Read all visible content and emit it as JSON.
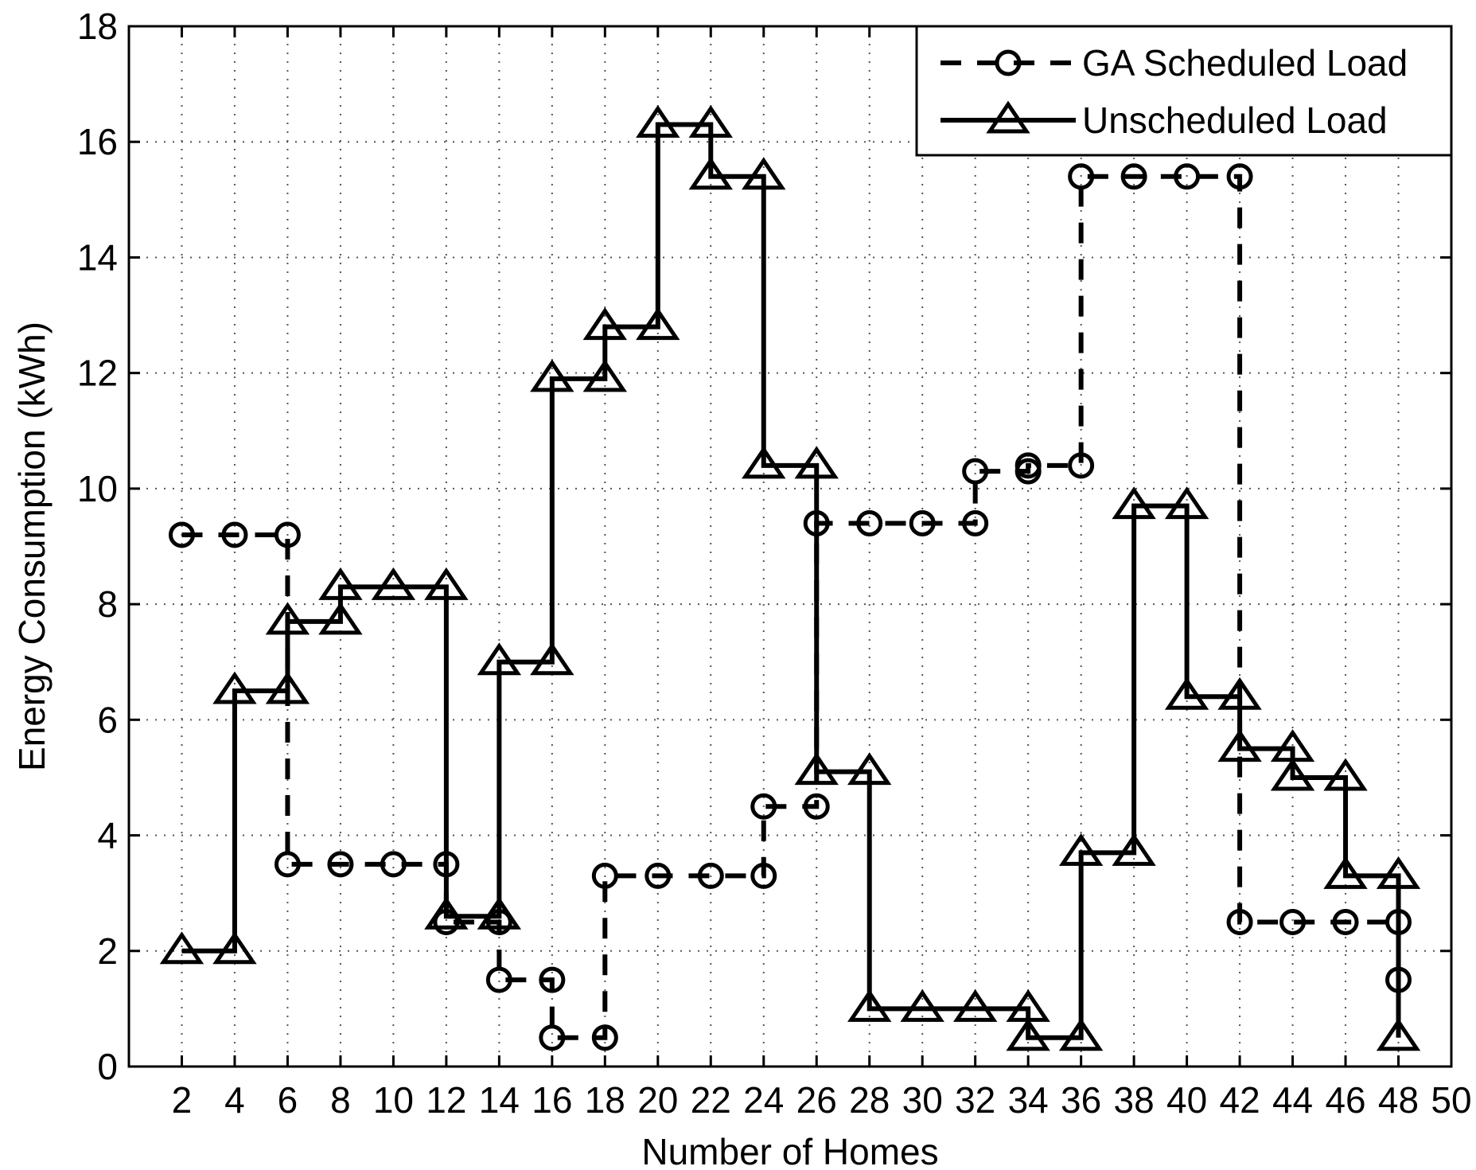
{
  "chart_data": {
    "type": "line",
    "xlabel": "Number of Homes",
    "ylabel": "Energy Consumption (kWh)",
    "xlim": [
      0,
      50
    ],
    "ylim": [
      0,
      18
    ],
    "xticks": [
      2,
      4,
      6,
      8,
      10,
      12,
      14,
      16,
      18,
      20,
      22,
      24,
      26,
      28,
      30,
      32,
      34,
      36,
      38,
      40,
      42,
      44,
      46,
      48,
      50
    ],
    "yticks": [
      0,
      2,
      4,
      6,
      8,
      10,
      12,
      14,
      16,
      18
    ],
    "grid": true,
    "legend_position": "top-right",
    "step": "post",
    "series": [
      {
        "name": "GA Scheduled Load",
        "line_style": "dashed",
        "marker": "circle",
        "color": "#000000",
        "x": [
          2,
          4,
          6,
          6,
          8,
          10,
          12,
          12,
          14,
          14,
          16,
          16,
          18,
          18,
          20,
          22,
          24,
          24,
          26,
          26,
          28,
          30,
          32,
          32,
          34,
          34,
          36,
          36,
          38,
          40,
          42,
          42,
          44,
          46,
          48,
          48
        ],
        "y": [
          9.2,
          9.2,
          9.2,
          3.5,
          3.5,
          3.5,
          3.5,
          2.5,
          2.5,
          1.5,
          1.5,
          0.5,
          0.5,
          3.3,
          3.3,
          3.3,
          3.3,
          4.5,
          4.5,
          9.4,
          9.4,
          9.4,
          9.4,
          10.3,
          10.3,
          10.4,
          10.4,
          15.4,
          15.4,
          15.4,
          15.4,
          2.5,
          2.5,
          2.5,
          2.5,
          1.5
        ]
      },
      {
        "name": "Unscheduled Load",
        "line_style": "solid",
        "marker": "triangle",
        "color": "#000000",
        "x": [
          2,
          4,
          4,
          6,
          6,
          8,
          8,
          10,
          12,
          12,
          14,
          14,
          16,
          16,
          18,
          18,
          20,
          20,
          22,
          22,
          24,
          24,
          26,
          26,
          28,
          28,
          30,
          32,
          34,
          34,
          36,
          36,
          38,
          38,
          40,
          40,
          42,
          42,
          44,
          44,
          46,
          46,
          48,
          48
        ],
        "y": [
          2.0,
          2.0,
          6.5,
          6.5,
          7.7,
          7.7,
          8.3,
          8.3,
          8.3,
          2.6,
          2.6,
          7.0,
          7.0,
          11.9,
          11.9,
          12.8,
          12.8,
          16.3,
          16.3,
          15.4,
          15.4,
          10.4,
          10.4,
          5.1,
          5.1,
          1.0,
          1.0,
          1.0,
          1.0,
          0.5,
          0.5,
          3.7,
          3.7,
          9.7,
          9.7,
          6.4,
          6.4,
          5.5,
          5.5,
          5.0,
          5.0,
          3.3,
          3.3,
          0.5
        ]
      }
    ]
  },
  "colors": {
    "background": "#ffffff",
    "foreground": "#000000",
    "grid": "#555555"
  }
}
